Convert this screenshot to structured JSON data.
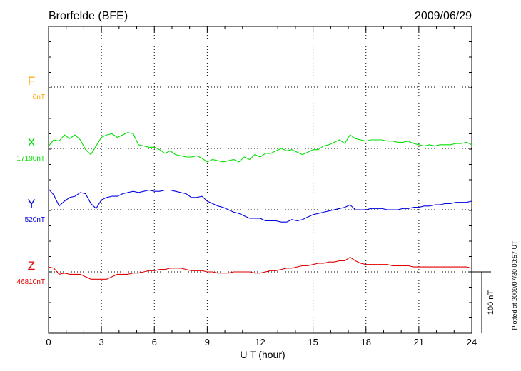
{
  "chart_data": {
    "type": "line",
    "title": "Brorfelde (BFE)",
    "date": "2009/06/29",
    "xlabel": "U T (hour)",
    "xlim": [
      0,
      24
    ],
    "xticks": [
      "0",
      "3",
      "6",
      "9",
      "12",
      "15",
      "18",
      "21",
      "24"
    ],
    "scale_label": "100 nT",
    "scale_nT": 100,
    "plotted_note": "Plotted at 2009/07/30 00:57 UT",
    "grid": true,
    "series": [
      {
        "name": "F",
        "baseline_label": "0nT",
        "color": "#ffa500",
        "x": [],
        "y": []
      },
      {
        "name": "X",
        "baseline_label": "17190nT",
        "color": "#00e000",
        "x": [
          0,
          0.3,
          0.6,
          0.9,
          1.2,
          1.5,
          1.8,
          2.1,
          2.4,
          2.7,
          3,
          3.3,
          3.6,
          3.9,
          4.2,
          4.5,
          4.8,
          5.1,
          5.4,
          5.7,
          6,
          6.3,
          6.6,
          6.9,
          7.2,
          7.5,
          7.8,
          8.1,
          8.4,
          8.7,
          9,
          9.3,
          9.6,
          9.9,
          10.2,
          10.5,
          10.8,
          11.1,
          11.4,
          11.7,
          12,
          12.3,
          12.6,
          12.9,
          13.2,
          13.5,
          13.8,
          14.1,
          14.4,
          14.7,
          15,
          15.3,
          15.6,
          15.9,
          16.2,
          16.5,
          16.8,
          17.1,
          17.4,
          17.7,
          18,
          18.3,
          18.6,
          18.9,
          19.2,
          19.5,
          19.8,
          20.1,
          20.4,
          20.7,
          21,
          21.3,
          21.6,
          21.9,
          22.2,
          22.5,
          22.8,
          23.1,
          23.4,
          23.7,
          24
        ],
        "y": [
          4,
          14,
          12,
          22,
          16,
          22,
          14,
          -2,
          -10,
          4,
          18,
          22,
          24,
          18,
          22,
          26,
          24,
          6,
          4,
          2,
          2,
          -2,
          -8,
          -4,
          -10,
          -12,
          -14,
          -14,
          -12,
          -16,
          -22,
          -18,
          -20,
          -22,
          -20,
          -18,
          -22,
          -14,
          -18,
          -10,
          -14,
          -8,
          -8,
          -4,
          0,
          -4,
          -2,
          -6,
          -10,
          -6,
          -2,
          -2,
          4,
          6,
          10,
          14,
          8,
          22,
          16,
          14,
          12,
          14,
          14,
          14,
          12,
          12,
          10,
          10,
          12,
          8,
          6,
          4,
          6,
          4,
          6,
          6,
          6,
          8,
          8,
          10,
          6
        ]
      },
      {
        "name": "Y",
        "baseline_label": "520nT",
        "color": "#0000e0",
        "x": [
          0,
          0.3,
          0.6,
          0.9,
          1.2,
          1.5,
          1.8,
          2.1,
          2.4,
          2.7,
          3,
          3.3,
          3.6,
          3.9,
          4.2,
          4.5,
          4.8,
          5.1,
          5.4,
          5.7,
          6,
          6.3,
          6.6,
          6.9,
          7.2,
          7.5,
          7.8,
          8.1,
          8.4,
          8.7,
          9,
          9.3,
          9.6,
          9.9,
          10.2,
          10.5,
          10.8,
          11.1,
          11.4,
          11.7,
          12,
          12.3,
          12.6,
          12.9,
          13.2,
          13.5,
          13.8,
          14.1,
          14.4,
          14.7,
          15,
          15.3,
          15.6,
          15.9,
          16.2,
          16.5,
          16.8,
          17.1,
          17.4,
          17.7,
          18,
          18.3,
          18.6,
          18.9,
          19.2,
          19.5,
          19.8,
          20.1,
          20.4,
          20.7,
          21,
          21.3,
          21.6,
          21.9,
          22.2,
          22.5,
          22.8,
          23.1,
          23.4,
          23.7,
          24
        ],
        "y": [
          34,
          24,
          6,
          14,
          20,
          22,
          28,
          26,
          10,
          2,
          16,
          20,
          22,
          22,
          26,
          28,
          30,
          28,
          30,
          32,
          30,
          30,
          32,
          32,
          30,
          28,
          26,
          20,
          20,
          22,
          14,
          10,
          6,
          4,
          0,
          -4,
          -6,
          -10,
          -14,
          -14,
          -14,
          -18,
          -18,
          -18,
          -20,
          -20,
          -16,
          -18,
          -16,
          -12,
          -8,
          -6,
          -4,
          -2,
          0,
          2,
          4,
          8,
          0,
          0,
          0,
          2,
          2,
          2,
          0,
          0,
          0,
          2,
          2,
          4,
          4,
          6,
          6,
          8,
          8,
          10,
          10,
          12,
          12,
          12,
          14
        ]
      },
      {
        "name": "Z",
        "baseline_label": "46810nT",
        "color": "#e00000",
        "x": [
          0,
          0.3,
          0.6,
          0.9,
          1.2,
          1.5,
          1.8,
          2.1,
          2.4,
          2.7,
          3,
          3.3,
          3.6,
          3.9,
          4.2,
          4.5,
          4.8,
          5.1,
          5.4,
          5.7,
          6,
          6.3,
          6.6,
          6.9,
          7.2,
          7.5,
          7.8,
          8.1,
          8.4,
          8.7,
          9,
          9.3,
          9.6,
          9.9,
          10.2,
          10.5,
          10.8,
          11.1,
          11.4,
          11.7,
          12,
          12.3,
          12.6,
          12.9,
          13.2,
          13.5,
          13.8,
          14.1,
          14.4,
          14.7,
          15,
          15.3,
          15.6,
          15.9,
          16.2,
          16.5,
          16.8,
          17.1,
          17.4,
          17.7,
          18,
          18.3,
          18.6,
          18.9,
          19.2,
          19.5,
          19.8,
          20.1,
          20.4,
          20.7,
          21,
          21.3,
          21.6,
          21.9,
          22.2,
          22.5,
          22.8,
          23.1,
          23.4,
          23.7,
          24
        ],
        "y": [
          8,
          6,
          -4,
          -2,
          -4,
          -4,
          -4,
          -8,
          -12,
          -12,
          -12,
          -12,
          -8,
          -4,
          -4,
          -4,
          -2,
          -2,
          0,
          2,
          2,
          4,
          4,
          6,
          6,
          6,
          4,
          2,
          2,
          2,
          0,
          0,
          -2,
          -2,
          -2,
          0,
          0,
          0,
          0,
          -2,
          -2,
          0,
          2,
          2,
          4,
          6,
          6,
          8,
          10,
          10,
          12,
          14,
          14,
          16,
          16,
          18,
          18,
          24,
          18,
          14,
          12,
          12,
          12,
          12,
          12,
          10,
          10,
          10,
          10,
          8,
          8,
          8,
          8,
          8,
          8,
          8,
          8,
          8,
          8,
          8,
          6
        ]
      }
    ]
  }
}
